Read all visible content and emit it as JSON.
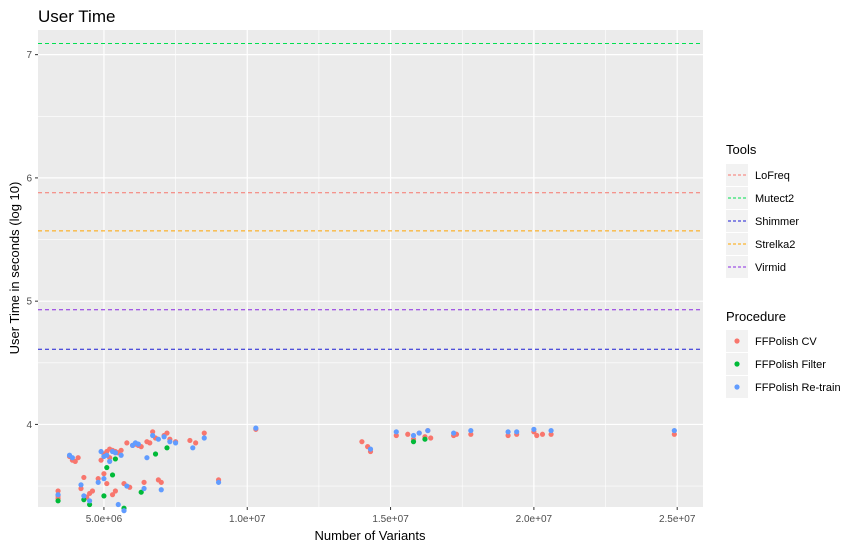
{
  "chart_data": {
    "type": "scatter",
    "title": "User Time",
    "xlabel": "Number of Variants",
    "ylabel": "User Time in seconds (log 10)",
    "xlim": [
      2700000,
      25900000
    ],
    "ylim": [
      3.33,
      7.2
    ],
    "x_ticks": [
      5000000,
      10000000,
      15000000,
      20000000,
      25000000
    ],
    "x_tick_labels": [
      "5.0e+06",
      "1.0e+07",
      "1.5e+07",
      "2.0e+07",
      "2.5e+07"
    ],
    "y_ticks": [
      4,
      5,
      6,
      7
    ],
    "y_tick_labels": [
      "4",
      "5",
      "6",
      "7"
    ],
    "grid": true,
    "background": "#ebebeb",
    "legend_position": "right",
    "lines_legend": {
      "title": "Tools",
      "items": [
        {
          "name": "LoFreq",
          "y": 5.88,
          "color": "#f8766d"
        },
        {
          "name": "Mutect2",
          "y": 7.09,
          "color": "#00e050"
        },
        {
          "name": "Shimmer",
          "y": 4.61,
          "color": "#1c1cd4"
        },
        {
          "name": "Strelka2",
          "y": 5.57,
          "color": "#ffa500"
        },
        {
          "name": "Virmid",
          "y": 4.93,
          "color": "#8a2be2"
        }
      ]
    },
    "points_legend": {
      "title": "Procedure",
      "items": [
        {
          "name": "FFPolish CV",
          "color": "#f8766d"
        },
        {
          "name": "FFPolish Filter",
          "color": "#00ba38"
        },
        {
          "name": "FFPolish Re-train",
          "color": "#619cff"
        }
      ]
    },
    "series": [
      {
        "name": "FFPolish CV",
        "color": "#f8766d",
        "points": [
          [
            3400000,
            3.46
          ],
          [
            3400000,
            3.42
          ],
          [
            3400000,
            3.4
          ],
          [
            3800000,
            3.74
          ],
          [
            3900000,
            3.71
          ],
          [
            4000000,
            3.7
          ],
          [
            4100000,
            3.73
          ],
          [
            4200000,
            3.48
          ],
          [
            4300000,
            3.57
          ],
          [
            4400000,
            3.41
          ],
          [
            4500000,
            3.44
          ],
          [
            4600000,
            3.46
          ],
          [
            4800000,
            3.56
          ],
          [
            4900000,
            3.71
          ],
          [
            5000000,
            3.76
          ],
          [
            5000000,
            3.6
          ],
          [
            5100000,
            3.78
          ],
          [
            5100000,
            3.52
          ],
          [
            5200000,
            3.8
          ],
          [
            5200000,
            3.73
          ],
          [
            5300000,
            3.79
          ],
          [
            5300000,
            3.43
          ],
          [
            5400000,
            3.78
          ],
          [
            5400000,
            3.46
          ],
          [
            5500000,
            3.77
          ],
          [
            5600000,
            3.79
          ],
          [
            5700000,
            3.52
          ],
          [
            5800000,
            3.85
          ],
          [
            5900000,
            3.49
          ],
          [
            6000000,
            3.83
          ],
          [
            6100000,
            3.84
          ],
          [
            6200000,
            3.83
          ],
          [
            6300000,
            3.82
          ],
          [
            6400000,
            3.53
          ],
          [
            6500000,
            3.86
          ],
          [
            6600000,
            3.85
          ],
          [
            6700000,
            3.94
          ],
          [
            6800000,
            3.89
          ],
          [
            6900000,
            3.55
          ],
          [
            7000000,
            3.53
          ],
          [
            7100000,
            3.91
          ],
          [
            7200000,
            3.93
          ],
          [
            7300000,
            3.88
          ],
          [
            7500000,
            3.86
          ],
          [
            8000000,
            3.87
          ],
          [
            8200000,
            3.85
          ],
          [
            8500000,
            3.93
          ],
          [
            9000000,
            3.55
          ],
          [
            10300000,
            3.96
          ],
          [
            14000000,
            3.86
          ],
          [
            14200000,
            3.82
          ],
          [
            14300000,
            3.78
          ],
          [
            15200000,
            3.91
          ],
          [
            15600000,
            3.92
          ],
          [
            15800000,
            3.88
          ],
          [
            16000000,
            3.93
          ],
          [
            16200000,
            3.9
          ],
          [
            16300000,
            3.95
          ],
          [
            16400000,
            3.89
          ],
          [
            17200000,
            3.91
          ],
          [
            17300000,
            3.92
          ],
          [
            17800000,
            3.92
          ],
          [
            19100000,
            3.91
          ],
          [
            19400000,
            3.92
          ],
          [
            20000000,
            3.94
          ],
          [
            20100000,
            3.91
          ],
          [
            20300000,
            3.92
          ],
          [
            20600000,
            3.92
          ],
          [
            24900000,
            3.92
          ]
        ]
      },
      {
        "name": "FFPolish Filter",
        "color": "#00ba38",
        "points": [
          [
            3400000,
            3.38
          ],
          [
            4300000,
            3.39
          ],
          [
            4500000,
            3.35
          ],
          [
            5000000,
            3.42
          ],
          [
            5100000,
            3.65
          ],
          [
            5300000,
            3.59
          ],
          [
            5400000,
            3.72
          ],
          [
            5700000,
            3.32
          ],
          [
            6300000,
            3.45
          ],
          [
            6800000,
            3.76
          ],
          [
            7200000,
            3.81
          ],
          [
            15800000,
            3.86
          ],
          [
            16200000,
            3.88
          ]
        ]
      },
      {
        "name": "FFPolish Re-train",
        "color": "#619cff",
        "points": [
          [
            3400000,
            3.43
          ],
          [
            3800000,
            3.75
          ],
          [
            3900000,
            3.73
          ],
          [
            4200000,
            3.51
          ],
          [
            4300000,
            3.42
          ],
          [
            4500000,
            3.38
          ],
          [
            4800000,
            3.53
          ],
          [
            4900000,
            3.78
          ],
          [
            5000000,
            3.56
          ],
          [
            5000000,
            3.74
          ],
          [
            5100000,
            3.75
          ],
          [
            5200000,
            3.7
          ],
          [
            5300000,
            3.78
          ],
          [
            5400000,
            3.77
          ],
          [
            5500000,
            3.35
          ],
          [
            5600000,
            3.75
          ],
          [
            5700000,
            3.3
          ],
          [
            5800000,
            3.5
          ],
          [
            6000000,
            3.83
          ],
          [
            6100000,
            3.85
          ],
          [
            6200000,
            3.84
          ],
          [
            6400000,
            3.48
          ],
          [
            6500000,
            3.73
          ],
          [
            6700000,
            3.91
          ],
          [
            6900000,
            3.88
          ],
          [
            7000000,
            3.47
          ],
          [
            7100000,
            3.9
          ],
          [
            7300000,
            3.86
          ],
          [
            7500000,
            3.85
          ],
          [
            8100000,
            3.81
          ],
          [
            8500000,
            3.89
          ],
          [
            9000000,
            3.53
          ],
          [
            10300000,
            3.97
          ],
          [
            14300000,
            3.8
          ],
          [
            15200000,
            3.94
          ],
          [
            15800000,
            3.91
          ],
          [
            16000000,
            3.93
          ],
          [
            16300000,
            3.95
          ],
          [
            17200000,
            3.93
          ],
          [
            17800000,
            3.95
          ],
          [
            19100000,
            3.94
          ],
          [
            19400000,
            3.94
          ],
          [
            20000000,
            3.96
          ],
          [
            20600000,
            3.95
          ],
          [
            24900000,
            3.95
          ]
        ]
      }
    ]
  }
}
